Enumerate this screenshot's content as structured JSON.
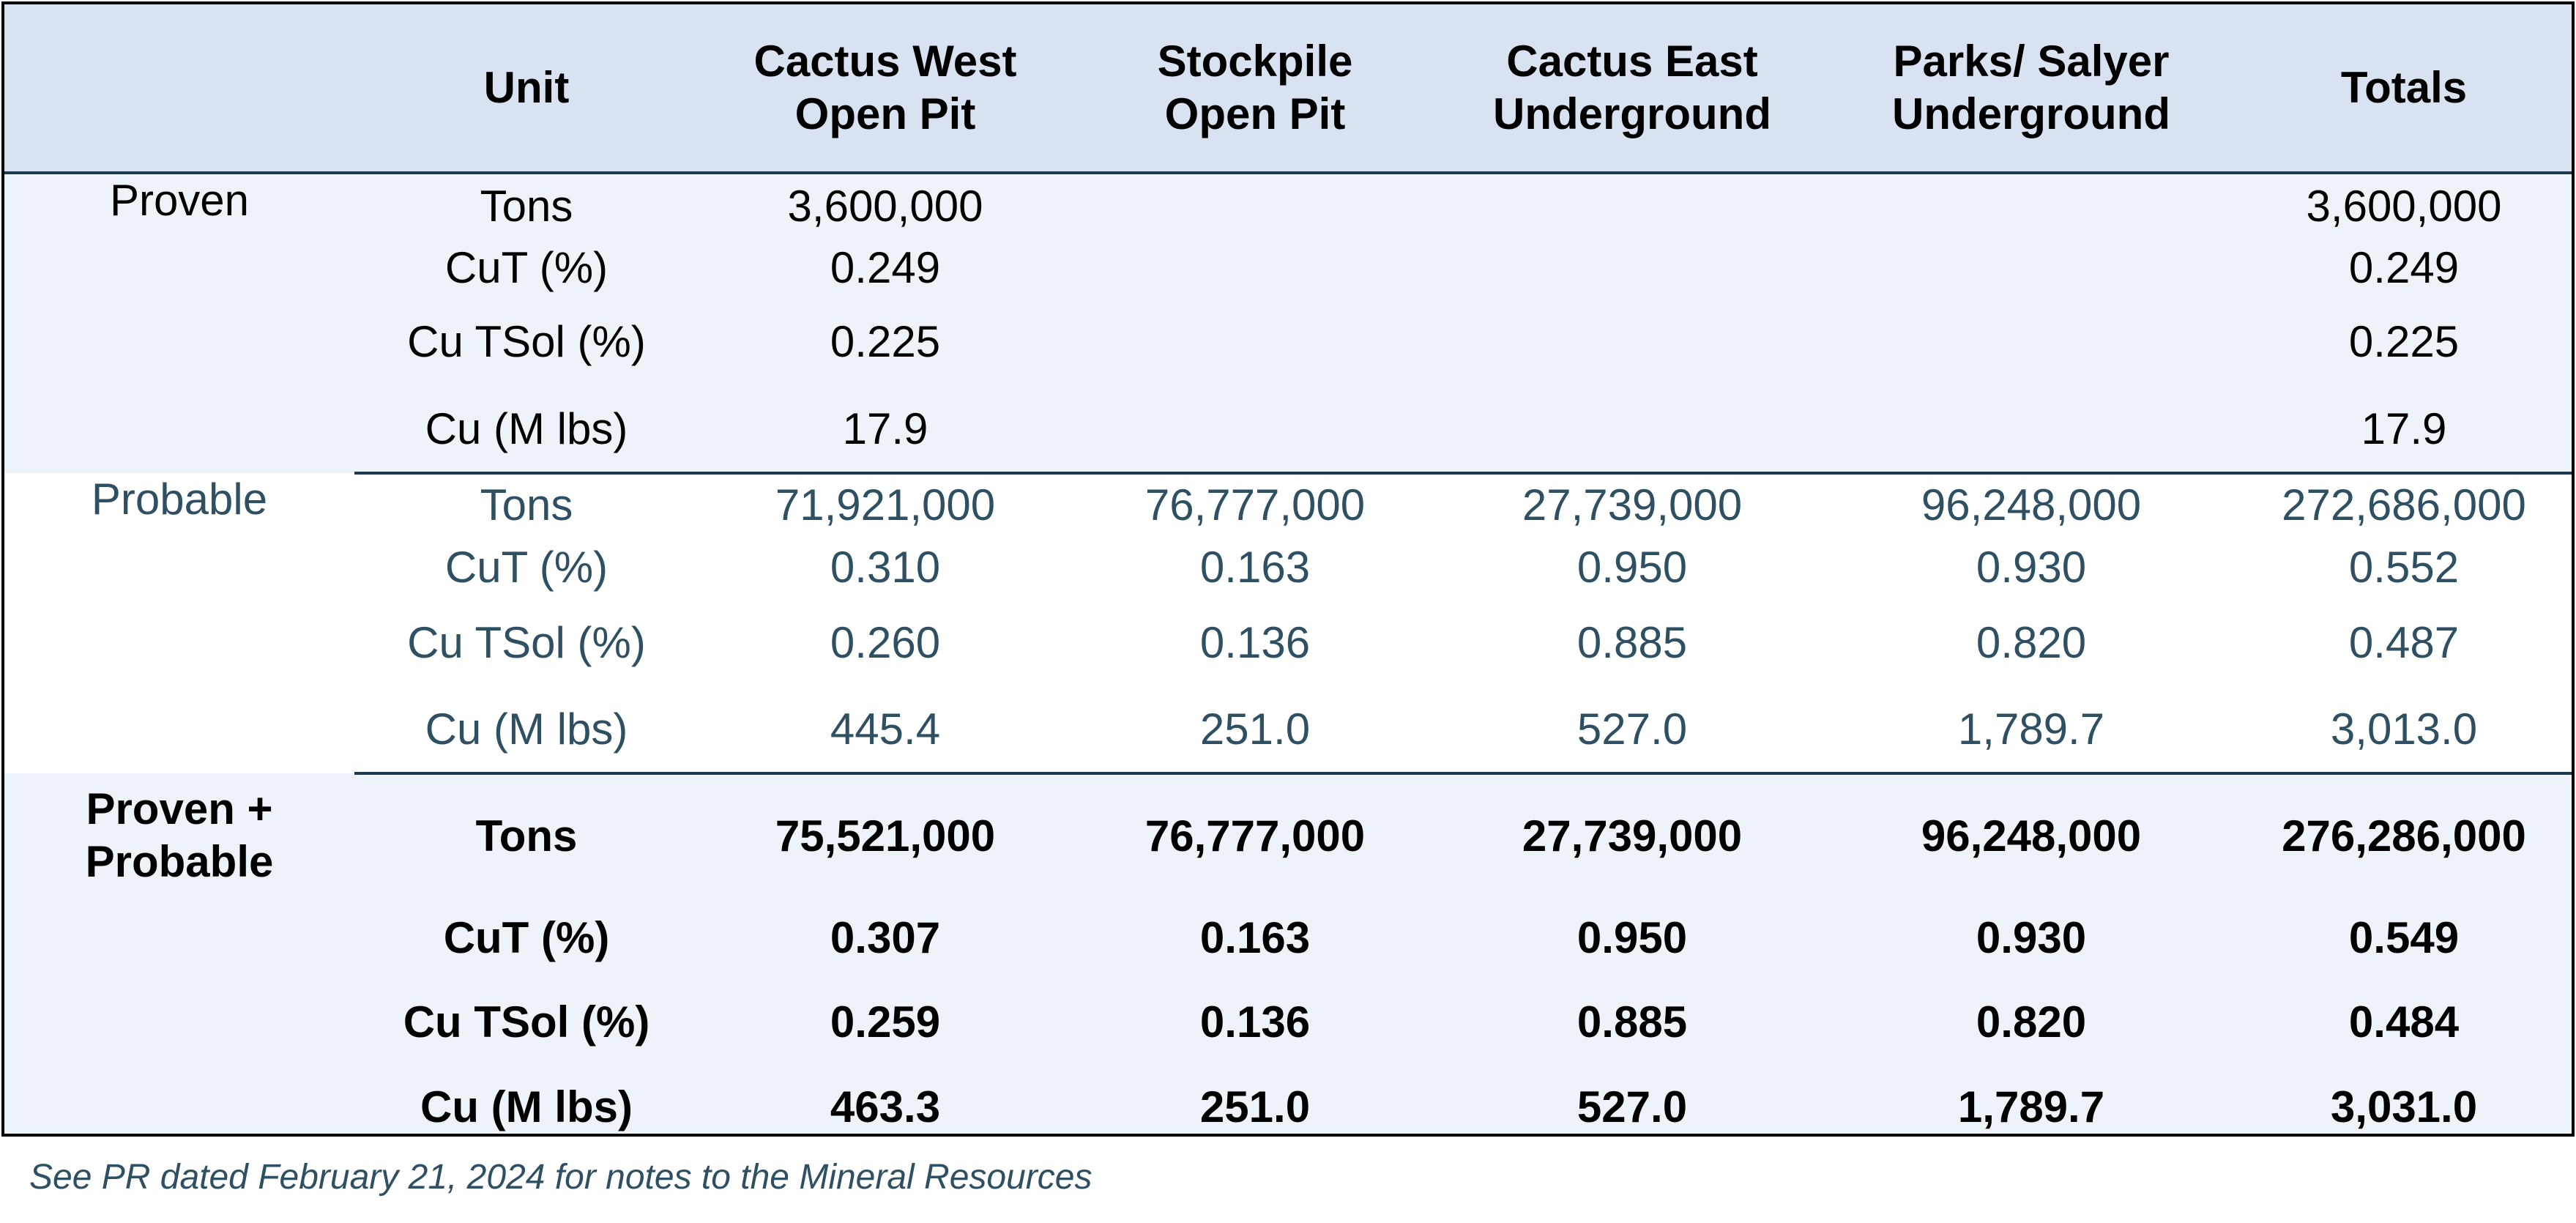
{
  "header": {
    "category": "",
    "unit": "Unit",
    "columns": [
      [
        "Cactus West",
        "Open Pit"
      ],
      [
        "Stockpile",
        "Open Pit"
      ],
      [
        "Cactus East",
        "Underground"
      ],
      [
        "Parks/ Salyer",
        "Underground"
      ],
      [
        "Totals"
      ]
    ]
  },
  "sections": {
    "proven": {
      "label": "Proven",
      "rows": [
        {
          "unit": "Tons",
          "values": [
            "3,600,000",
            "",
            "",
            "",
            "3,600,000"
          ]
        },
        {
          "unit": "CuT (%)",
          "values": [
            "0.249",
            "",
            "",
            "",
            "0.249"
          ]
        },
        {
          "unit": "Cu TSol (%)",
          "values": [
            "0.225",
            "",
            "",
            "",
            "0.225"
          ]
        },
        {
          "unit": "Cu (M lbs)",
          "values": [
            "17.9",
            "",
            "",
            "",
            "17.9"
          ]
        }
      ]
    },
    "probable": {
      "label": "Probable",
      "rows": [
        {
          "unit": "Tons",
          "values": [
            "71,921,000",
            "76,777,000",
            "27,739,000",
            "96,248,000",
            "272,686,000"
          ]
        },
        {
          "unit": "CuT (%)",
          "values": [
            "0.310",
            "0.163",
            "0.950",
            "0.930",
            "0.552"
          ]
        },
        {
          "unit": "Cu TSol (%)",
          "values": [
            "0.260",
            "0.136",
            "0.885",
            "0.820",
            "0.487"
          ]
        },
        {
          "unit": "Cu (M lbs)",
          "values": [
            "445.4",
            "251.0",
            "527.0",
            "1,789.7",
            "3,013.0"
          ]
        }
      ]
    },
    "combined": {
      "label_line1": "Proven +",
      "label_line2": "Probable",
      "rows": [
        {
          "unit": "Tons",
          "values": [
            "75,521,000",
            "76,777,000",
            "27,739,000",
            "96,248,000",
            "276,286,000"
          ]
        },
        {
          "unit": "CuT (%)",
          "values": [
            "0.307",
            "0.163",
            "0.950",
            "0.930",
            "0.549"
          ]
        },
        {
          "unit": "Cu TSol (%)",
          "values": [
            "0.259",
            "0.136",
            "0.885",
            "0.820",
            "0.484"
          ]
        },
        {
          "unit": "Cu (M lbs)",
          "values": [
            "463.3",
            "251.0",
            "527.0",
            "1,789.7",
            "3,031.0"
          ]
        }
      ]
    }
  },
  "footnote": "See PR dated February 21, 2024 for notes to the Mineral Resources",
  "colors": {
    "header_bg": "#d9e2f1",
    "band_bg": "#eef2f9",
    "probable_text": "#2f4f63",
    "rule": "#1c3a4f"
  }
}
